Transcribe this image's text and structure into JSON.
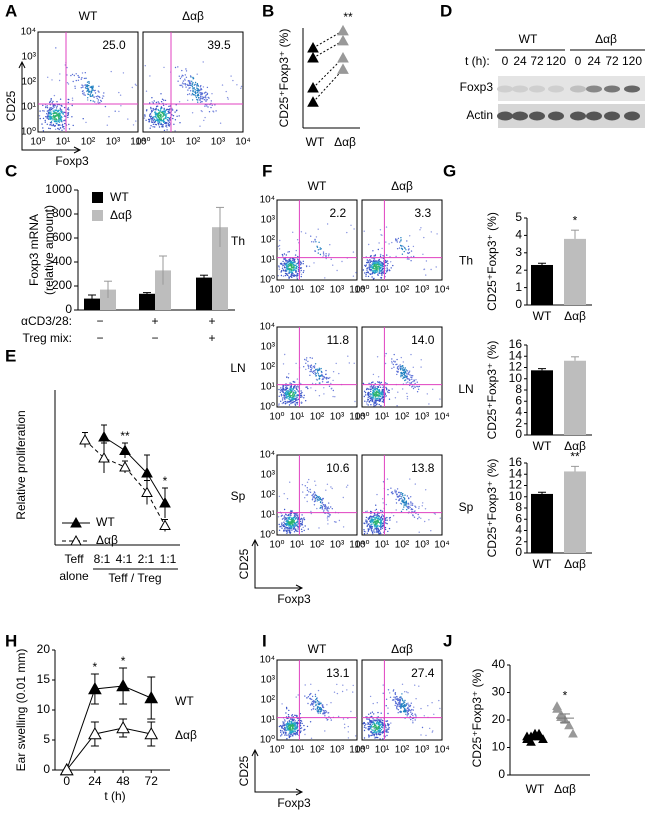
{
  "flow_ticks": [
    "10⁰",
    "10¹",
    "10²",
    "10³",
    "10⁴"
  ],
  "A": {
    "label": "A",
    "titles": [
      "WT",
      "Δαβ"
    ],
    "percents": [
      "25.0",
      "39.5"
    ],
    "ylabel": "CD25",
    "xlabel": "Foxp3"
  },
  "B": {
    "label": "B",
    "ylabel": "CD25⁺Foxp3⁺ (%)",
    "categories": [
      "WT",
      "Δαβ"
    ],
    "ylim": [
      0,
      70
    ],
    "values": [
      [
        56,
        49,
        28,
        18
      ],
      [
        68,
        61,
        49,
        41
      ]
    ],
    "significance": "**"
  },
  "C": {
    "label": "C",
    "ylabel": [
      "Foxp3 mRNA",
      "(relative amount)"
    ],
    "ylim": [
      0,
      1000
    ],
    "yticks": [
      0,
      200,
      400,
      600,
      800,
      1000
    ],
    "series": [
      {
        "name": "WT",
        "color": "#000000",
        "values": [
          95,
          135,
          270
        ],
        "errors": [
          30,
          10,
          20
        ]
      },
      {
        "name": "Δαβ",
        "color": "#bdbdbd",
        "values": [
          170,
          330,
          690
        ],
        "errors": [
          70,
          120,
          165
        ]
      }
    ],
    "conditions": [
      {
        "name": "αCD3/28:",
        "values": [
          "−",
          "+",
          "+"
        ]
      },
      {
        "name": "Treg mix:",
        "values": [
          "−",
          "−",
          "+"
        ]
      }
    ]
  },
  "D": {
    "label": "D",
    "groups": [
      "WT",
      "Δαβ"
    ],
    "time_label": "t (h):",
    "times": [
      "0",
      "24",
      "72",
      "120",
      "0",
      "24",
      "72",
      "120"
    ],
    "rows": [
      "Foxp3",
      "Actin"
    ]
  },
  "E": {
    "label": "E",
    "ylabel": "Relative proliferation",
    "categories": [
      "Teff",
      "8:1",
      "4:1",
      "2:1",
      "1:1"
    ],
    "sublabels": [
      "alone",
      "Teff / Treg"
    ],
    "ylim": [
      0,
      100
    ],
    "series": [
      {
        "name": "WT",
        "values": [
          null,
          72,
          63,
          48,
          28
        ],
        "errors": [
          null,
          8,
          5,
          12,
          10
        ]
      },
      {
        "name": "Δαβ",
        "values": [
          70,
          58,
          52,
          35,
          13
        ],
        "errors": [
          5,
          10,
          4,
          8,
          4
        ]
      }
    ],
    "annotations": [
      {
        "x": "4:1",
        "label": "**"
      },
      {
        "x": "1:1",
        "label": "*"
      }
    ]
  },
  "F": {
    "label": "F",
    "columns": [
      "WT",
      "Δαβ"
    ],
    "rows": [
      {
        "name": "Th",
        "percents": [
          "2.2",
          "3.3"
        ]
      },
      {
        "name": "LN",
        "percents": [
          "11.8",
          "14.0"
        ]
      },
      {
        "name": "Sp",
        "percents": [
          "10.6",
          "13.8"
        ]
      }
    ],
    "ylabel": "CD25",
    "xlabel": "Foxp3"
  },
  "G": {
    "label": "G",
    "ylabel": "CD25⁺Foxp3⁺ (%)",
    "categories": [
      "WT",
      "Δαβ"
    ],
    "colors": [
      "#000000",
      "#bdbdbd"
    ],
    "charts": [
      {
        "name": "Th",
        "ylim": [
          0,
          5
        ],
        "yticks": [
          0,
          1,
          2,
          3,
          4,
          5
        ],
        "values": [
          2.3,
          3.8
        ],
        "errors": [
          0.1,
          0.5
        ],
        "significance": "*"
      },
      {
        "name": "LN",
        "ylim": [
          0,
          16
        ],
        "yticks": [
          0,
          2,
          4,
          6,
          8,
          10,
          12,
          14,
          16
        ],
        "values": [
          11.5,
          13.2
        ],
        "errors": [
          0.3,
          0.7
        ]
      },
      {
        "name": "Sp",
        "ylim": [
          0,
          16
        ],
        "yticks": [
          0,
          2,
          4,
          6,
          8,
          10,
          12,
          14,
          16
        ],
        "values": [
          10.5,
          14.5
        ],
        "errors": [
          0.3,
          0.9
        ],
        "significance": "**"
      }
    ]
  },
  "H": {
    "label": "H",
    "ylabel": "Ear swelling (0.01 mm)",
    "xlabel": "t (h)",
    "x": [
      0,
      24,
      48,
      72
    ],
    "xlim": [
      -10,
      88
    ],
    "xticks": [
      0,
      24,
      48,
      72
    ],
    "ylim": [
      0,
      20
    ],
    "yticks": [
      0,
      5,
      10,
      15,
      20
    ],
    "series": [
      {
        "name": "WT",
        "values": [
          0,
          13.5,
          14,
          12
        ],
        "errors": [
          0,
          2.5,
          3,
          3.5
        ]
      },
      {
        "name": "Δαβ",
        "values": [
          0,
          6,
          7,
          6
        ],
        "errors": [
          0,
          2,
          1.5,
          2
        ]
      }
    ],
    "annotations": [
      {
        "x": 24,
        "label": "*"
      },
      {
        "x": 48,
        "label": "*"
      }
    ]
  },
  "I": {
    "label": "I",
    "columns": [
      "WT",
      "Δαβ"
    ],
    "percents": [
      "13.1",
      "27.4"
    ],
    "ylabel": "CD25",
    "xlabel": "Foxp3"
  },
  "J": {
    "label": "J",
    "ylabel": "CD25⁺Foxp3⁺ (%)",
    "categories": [
      "WT",
      "Δαβ"
    ],
    "ylim": [
      0,
      40
    ],
    "yticks": [
      0,
      10,
      20,
      30,
      40
    ],
    "values": [
      [
        13,
        14,
        14,
        15,
        13,
        14,
        12,
        15,
        14
      ],
      [
        25,
        22,
        20,
        18,
        15,
        24,
        21
      ]
    ],
    "means": [
      13.8,
      20.7
    ],
    "sems": [
      0.4,
      1.5
    ],
    "significance": "*"
  }
}
